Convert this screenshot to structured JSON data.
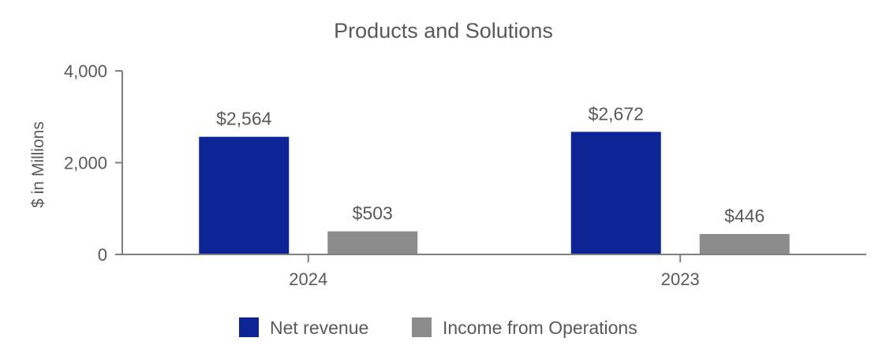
{
  "chart_data": {
    "type": "bar",
    "title": "Products and Solutions",
    "xlabel": "",
    "ylabel": "$ in Millions",
    "categories": [
      "2024",
      "2023"
    ],
    "series": [
      {
        "name": "Net revenue",
        "color": "#0c2496",
        "values": [
          2564,
          2672
        ],
        "labels": [
          "$2,564",
          "$2,672"
        ]
      },
      {
        "name": "Income from Operations",
        "color": "#8c8c8c",
        "values": [
          503,
          446
        ],
        "labels": [
          "$503",
          "$446"
        ]
      }
    ],
    "ylim": [
      0,
      4000
    ],
    "yticks": [
      0,
      2000,
      4000
    ],
    "ytick_labels": [
      "0",
      "2,000",
      "4,000"
    ],
    "grid": false,
    "legend_position": "bottom-center"
  },
  "colors": {
    "text": "#595959",
    "axis": "#7f7f7f"
  }
}
